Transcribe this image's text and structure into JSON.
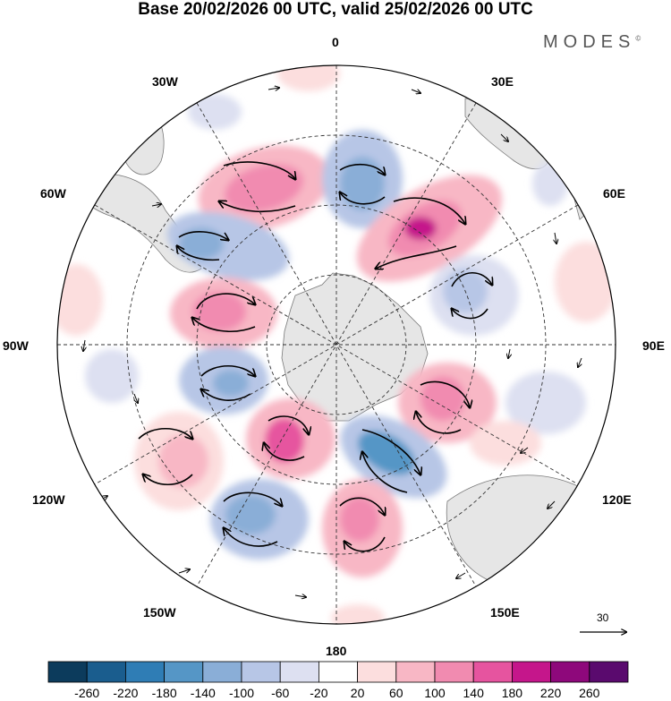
{
  "title": "Base 20/02/2026 00 UTC, valid 25/02/2026 00 UTC",
  "brand": "MODES",
  "brand_mark": "©",
  "longitude_labels": {
    "n0": "0",
    "w30": "30W",
    "e30": "30E",
    "w60": "60W",
    "e60": "60E",
    "w90": "90W",
    "e90": "90E",
    "w120": "120W",
    "e120": "120E",
    "w150": "150W",
    "e150": "150E",
    "s180": "180"
  },
  "vector_scale": "30",
  "colorbar": {
    "colors": [
      "#0c3b5c",
      "#1a5d8e",
      "#2f7db5",
      "#5596c6",
      "#8aaed7",
      "#b7c6e6",
      "#dde0f1",
      "#ffffff",
      "#fcdede",
      "#f8b7c5",
      "#f18bb0",
      "#e6549f",
      "#c5168b",
      "#8e087b",
      "#5a0a6e"
    ],
    "ticks": [
      "-260",
      "-220",
      "-180",
      "-140",
      "-100",
      "-60",
      "-20",
      "20",
      "60",
      "100",
      "140",
      "180",
      "220",
      "260"
    ]
  }
}
